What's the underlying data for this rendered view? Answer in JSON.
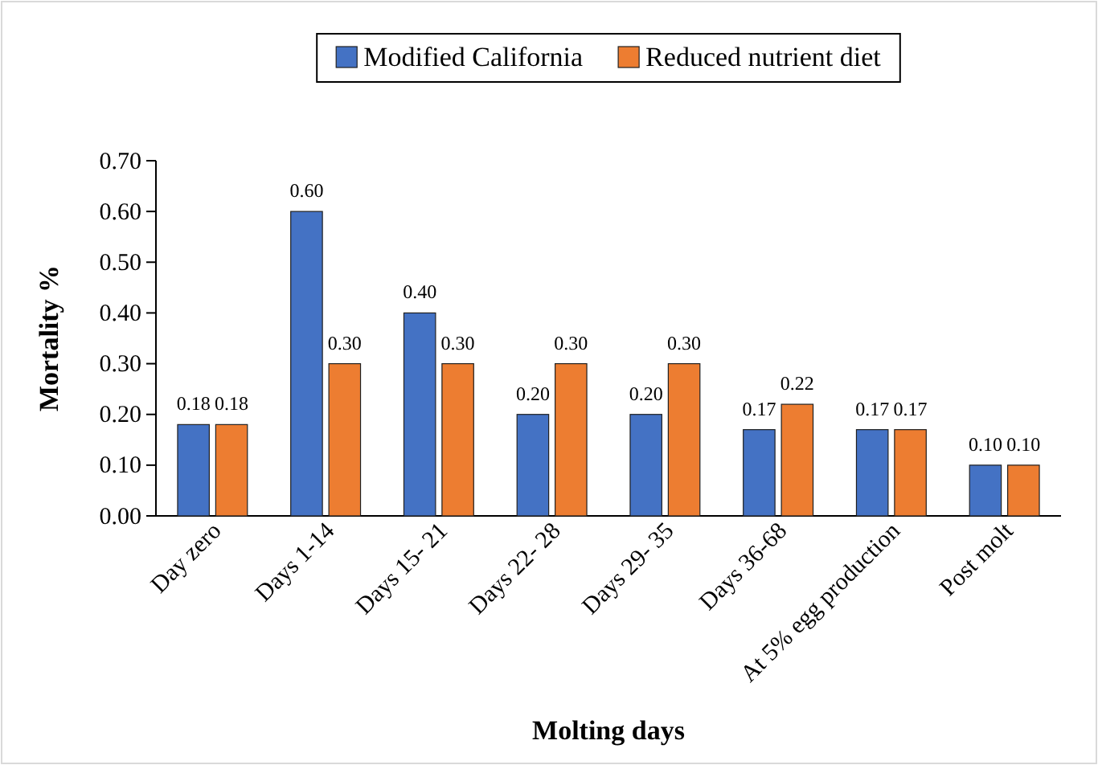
{
  "chart_data": {
    "type": "bar",
    "xlabel": "Molting days",
    "ylabel": "Mortality %",
    "categories": [
      "Day zero",
      "Days 1-14",
      "Days 15- 21",
      "Days 22- 28",
      "Days 29- 35",
      "Days 36-68",
      "At 5% egg production",
      "Post molt"
    ],
    "series": [
      {
        "name": "Modified California",
        "color": "#4472c4",
        "values": [
          0.18,
          0.6,
          0.4,
          0.2,
          0.2,
          0.17,
          0.17,
          0.1
        ],
        "value_labels": [
          "0.18",
          "0.60",
          "0.40",
          "0.20",
          "0.20",
          "0.17",
          "0.17",
          "0.10"
        ]
      },
      {
        "name": "Reduced nutrient diet",
        "color": "#ed7d31",
        "values": [
          0.18,
          0.3,
          0.3,
          0.3,
          0.3,
          0.22,
          0.17,
          0.1
        ],
        "value_labels": [
          "0.18",
          "0.30",
          "0.30",
          "0.30",
          "0.30",
          "0.22",
          "0.17",
          "0.10"
        ]
      }
    ],
    "ylim": [
      0,
      0.7
    ],
    "yticks": [
      {
        "value": 0,
        "label": "0.00"
      },
      {
        "value": 0.1,
        "label": "0.10"
      },
      {
        "value": 0.2,
        "label": "0.20"
      },
      {
        "value": 0.3,
        "label": "0.30"
      },
      {
        "value": 0.4,
        "label": "0.40"
      },
      {
        "value": 0.5,
        "label": "0.50"
      },
      {
        "value": 0.6,
        "label": "0.60"
      },
      {
        "value": 0.7,
        "label": "0.70"
      }
    ],
    "grid": false,
    "legend": "top"
  }
}
